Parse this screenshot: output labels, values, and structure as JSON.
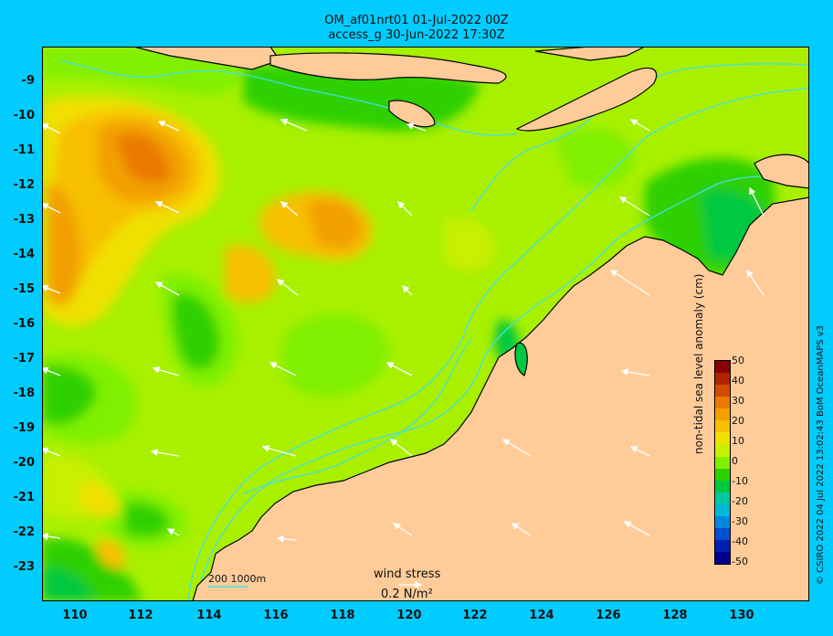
{
  "header": {
    "line1": "OM_af01nrt01 01-Jul-2022 00Z",
    "line2": "access_g 30-Jun-2022 17:30Z"
  },
  "y_axis": {
    "ticks": [
      "-9",
      "-10",
      "-11",
      "-12",
      "-13",
      "-14",
      "-15",
      "-16",
      "-17",
      "-18",
      "-19",
      "-20",
      "-21",
      "-22",
      "-23"
    ]
  },
  "x_axis": {
    "ticks": [
      "110",
      "112",
      "114",
      "116",
      "118",
      "120",
      "122",
      "124",
      "126",
      "128",
      "130"
    ]
  },
  "colorbar": {
    "title": "non-tidal sea level anomaly (cm)",
    "ticks": [
      "50",
      "40",
      "30",
      "20",
      "10",
      "0",
      "-10",
      "-20",
      "-30",
      "-40",
      "-50"
    ],
    "colors": [
      "#8b0000",
      "#b22200",
      "#d44a00",
      "#ea7a00",
      "#f2a000",
      "#f7c000",
      "#f0e000",
      "#c8f000",
      "#80f000",
      "#2ed000",
      "#00c840",
      "#00c8a0",
      "#00b8d8",
      "#0088e0",
      "#0050d0",
      "#0020b0",
      "#00008b"
    ]
  },
  "bathymetry_legend": "200  1000m",
  "wind_legend": {
    "title": "wind stress",
    "value": "0.2 N/m²"
  },
  "credit": "© CSIRO 2022   04 Jul 2022 13:02:43 BoM OceanMAPS v3",
  "map_colors": {
    "ocean_base": "#a8f000",
    "land": "#ffcc99",
    "frame_bg": "#00ccff"
  }
}
